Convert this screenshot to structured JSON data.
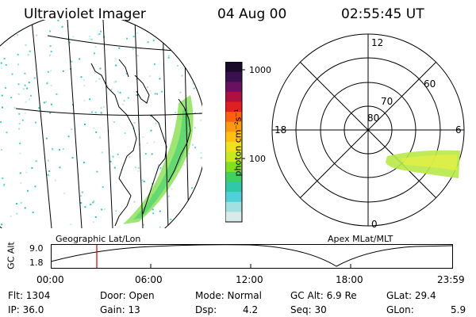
{
  "header": {
    "title": "Ultraviolet Imager",
    "date": "04 Aug 00",
    "time": "02:55:45 UT"
  },
  "colorbar": {
    "ticks": [
      "1000",
      "100"
    ],
    "unit_label": "photon cm⁻²s⁻¹",
    "colors": [
      "#1a0a2a",
      "#3a1050",
      "#6a1060",
      "#b01040",
      "#e02020",
      "#ff6010",
      "#ff9a10",
      "#ffc010",
      "#f0e020",
      "#c8e820",
      "#80e020",
      "#40d060",
      "#30c8a8",
      "#50d0d8",
      "#a0e0e0",
      "#d8eaea"
    ]
  },
  "left_panel": {
    "label": "Geographic Lat/Lon"
  },
  "right_panel": {
    "label": "Apex MLat/MLT",
    "lat_labels": [
      "80",
      "70",
      "60"
    ],
    "mlt_labels": {
      "top": "12",
      "bottom": "0",
      "left": "18",
      "right": "6"
    }
  },
  "timeline": {
    "ylabel": "GC Alt",
    "yticks": [
      "9.0",
      "1.8"
    ],
    "xticks": [
      "00:00",
      "06:00",
      "12:00",
      "18:00",
      "23:59"
    ],
    "marker_time": "02:55",
    "marker_color": "#cc0000"
  },
  "status": {
    "flt": "Flt:  1304",
    "ip": "IP:  36.0",
    "door": "Door:  Open",
    "gain": "Gain:  13",
    "mode": "Mode:  Normal",
    "dsp_label": "Dsp:",
    "dsp_value": "4.2",
    "gcalt": "GC Alt:  6.9  Re",
    "seq": "Seq:  30",
    "glat": "GLat:  29.4",
    "glon_label": "GLon:",
    "glon_value": "5.9"
  }
}
